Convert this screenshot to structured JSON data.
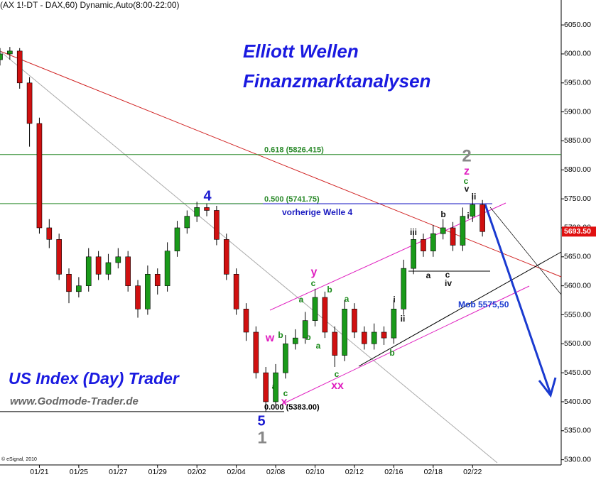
{
  "chart_data": {
    "type": "candlestick",
    "header": "(AX 1!-DT - DAX,60) Dynamic,Auto(8:00-22:00)",
    "title": "Elliott Wellen",
    "subtitle": "Finanzmarktanalysen",
    "brand": "US Index (Day) Trader",
    "website": "www.Godmode-Trader.de",
    "copyright": "© eSignal, 2010",
    "xlim": [
      0,
      57
    ],
    "ylim": [
      5291,
      6093
    ],
    "xticks": [
      {
        "value": 4,
        "label": "01/21"
      },
      {
        "value": 8,
        "label": "01/25"
      },
      {
        "value": 12,
        "label": "01/27"
      },
      {
        "value": 16,
        "label": "01/29"
      },
      {
        "value": 20,
        "label": "02/02"
      },
      {
        "value": 24,
        "label": "02/04"
      },
      {
        "value": 28,
        "label": "02/08"
      },
      {
        "value": 32,
        "label": "02/10"
      },
      {
        "value": 36,
        "label": "02/12"
      },
      {
        "value": 40,
        "label": "02/16"
      },
      {
        "value": 44,
        "label": "02/18"
      },
      {
        "value": 48,
        "label": "02/22"
      }
    ],
    "yticks": [
      {
        "value": 5300,
        "label": "5300.00"
      },
      {
        "value": 5350,
        "label": "5350.00"
      },
      {
        "value": 5400,
        "label": "5400.00"
      },
      {
        "value": 5450,
        "label": "5450.00"
      },
      {
        "value": 5500,
        "label": "5500.00"
      },
      {
        "value": 5550,
        "label": "5550.00"
      },
      {
        "value": 5600,
        "label": "5600.00"
      },
      {
        "value": 5650,
        "label": "5650.00"
      },
      {
        "value": 5700,
        "label": "5700.00"
      },
      {
        "value": 5750,
        "label": "5750.00"
      },
      {
        "value": 5800,
        "label": "5800.00"
      },
      {
        "value": 5850,
        "label": "5850.00"
      },
      {
        "value": 5900,
        "label": "5900.00"
      },
      {
        "value": 5950,
        "label": "5950.00"
      },
      {
        "value": 6000,
        "label": "6000.00"
      },
      {
        "value": 6050,
        "label": "6050.00"
      }
    ],
    "grid": false,
    "up_color": "#1a9a1a",
    "down_color": "#d01010",
    "open": [
      5990,
      6000,
      6005,
      5950,
      5880,
      5700,
      5680,
      5620,
      5590,
      5600,
      5650,
      5620,
      5640,
      5650,
      5600,
      5560,
      5620,
      5600,
      5660,
      5700,
      5720,
      5735,
      5730,
      5680,
      5620,
      5560,
      5520,
      5450,
      5400,
      5450,
      5500,
      5510,
      5540,
      5580,
      5520,
      5480,
      5560,
      5520,
      5500,
      5520,
      5510,
      5560,
      5630,
      5680,
      5660,
      5690,
      5700,
      5670,
      5720,
      5740
    ],
    "high": [
      6010,
      6012,
      6010,
      5960,
      5890,
      5715,
      5690,
      5630,
      5615,
      5665,
      5660,
      5655,
      5665,
      5660,
      5610,
      5635,
      5630,
      5675,
      5712,
      5730,
      5745,
      5742,
      5738,
      5690,
      5630,
      5570,
      5530,
      5460,
      5465,
      5515,
      5525,
      5555,
      5595,
      5590,
      5530,
      5575,
      5570,
      5530,
      5535,
      5530,
      5575,
      5645,
      5692,
      5690,
      5705,
      5715,
      5710,
      5735,
      5760,
      5748
    ],
    "low": [
      5980,
      5990,
      5940,
      5840,
      5690,
      5665,
      5610,
      5570,
      5580,
      5590,
      5610,
      5610,
      5630,
      5590,
      5545,
      5550,
      5585,
      5590,
      5650,
      5690,
      5710,
      5720,
      5670,
      5610,
      5550,
      5505,
      5440,
      5383,
      5390,
      5440,
      5490,
      5500,
      5530,
      5510,
      5460,
      5470,
      5510,
      5490,
      5490,
      5498,
      5500,
      5550,
      5620,
      5650,
      5650,
      5680,
      5660,
      5660,
      5710,
      5685
    ],
    "close": [
      6000,
      6005,
      5950,
      5880,
      5700,
      5680,
      5620,
      5590,
      5600,
      5650,
      5620,
      5640,
      5650,
      5600,
      5560,
      5620,
      5600,
      5660,
      5700,
      5720,
      5735,
      5730,
      5680,
      5620,
      5560,
      5520,
      5450,
      5400,
      5450,
      5500,
      5510,
      5540,
      5580,
      5520,
      5480,
      5560,
      5520,
      5500,
      5520,
      5510,
      5560,
      5630,
      5680,
      5660,
      5690,
      5700,
      5670,
      5720,
      5740,
      5693.5
    ],
    "last_price": {
      "value": 5693.5,
      "label": "5693.50"
    },
    "levels": [
      {
        "label": "0.618 (5826.415)",
        "value": 5826.415,
        "color": "#2a8a2a"
      },
      {
        "label": "0.500 (5741.75)",
        "value": 5741.75,
        "color": "#2a8a2a"
      },
      {
        "label": "0.000 (5383.00)",
        "value": 5383,
        "color": "#000000"
      }
    ],
    "notes": [
      "vorherige Welle 4",
      "Mob 5575,50"
    ],
    "wave_labels": [
      "4",
      "5",
      "1",
      "2",
      "z",
      "c",
      "v",
      "ii",
      "y",
      "c",
      "w",
      "b",
      "x",
      "c",
      "a",
      "xx",
      "c",
      "b",
      "a",
      "b",
      "a",
      "a",
      "b",
      "i",
      "ii",
      "iii",
      "a",
      "c",
      "iv",
      "b",
      "i"
    ]
  }
}
